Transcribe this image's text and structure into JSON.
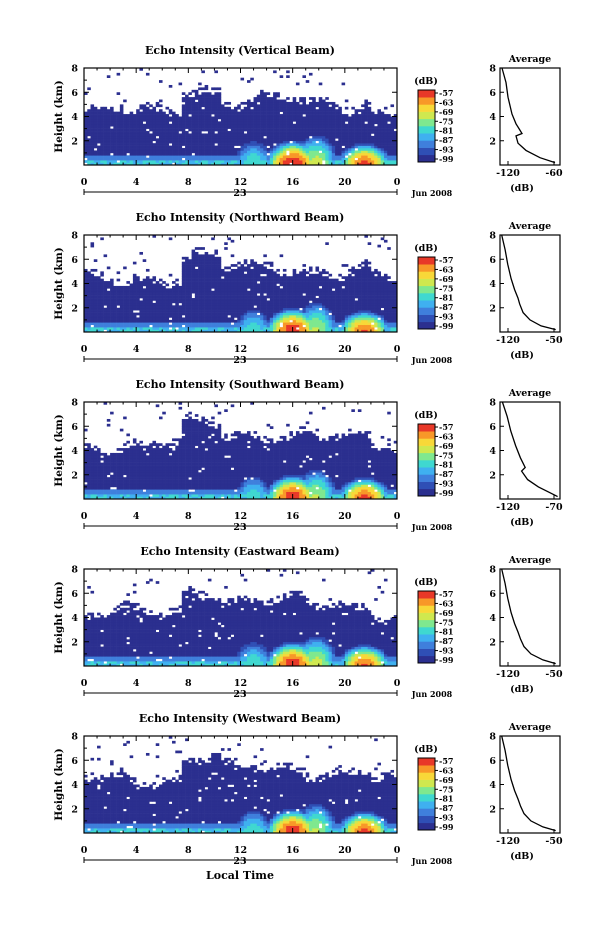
{
  "colormap": [
    "#2b2f8f",
    "#2f4fb5",
    "#3f7fdc",
    "#3fb0f0",
    "#3fd8d0",
    "#7fe88f",
    "#cfe84f",
    "#f8d838",
    "#f89828",
    "#e83828"
  ],
  "shared": {
    "x_ticks": [
      "0",
      "4",
      "8",
      "12",
      "16",
      "20",
      "0"
    ],
    "day_label": "23",
    "month_label": "Jun 2008",
    "xlabel": "Local Time",
    "ylabel": "Height (km)",
    "y_ticks": [
      "8",
      "6",
      "4",
      "2"
    ],
    "cb_unit": "(dB)",
    "cb_ticks": [
      "-57",
      "-63",
      "-69",
      "-75",
      "-81",
      "-87",
      "-93",
      "-99"
    ],
    "avg_title": "Average",
    "avg_xlabel": "(dB)"
  },
  "chart_data": [
    {
      "type": "heatmap",
      "title": "Echo Intensity (Vertical Beam)",
      "xlim": [
        0,
        24
      ],
      "ylim": [
        0,
        8
      ],
      "colorbar_range": [
        -99,
        -57
      ],
      "top_height_km": 4.2,
      "peaks": [
        {
          "x": 16,
          "y": 0.5,
          "v": -57
        },
        {
          "x": 21.5,
          "y": 0.4,
          "v": -60
        },
        {
          "x": 17.8,
          "y": 1.2,
          "v": -72
        },
        {
          "x": 13,
          "y": 1.0,
          "v": -78
        }
      ],
      "average_profile": {
        "xlim": [
          -120,
          -60
        ],
        "x_ticks": [
          "-120",
          "-60"
        ],
        "points": [
          [
            -118,
            8
          ],
          [
            -114,
            6.8
          ],
          [
            -112,
            5.6
          ],
          [
            -108,
            4.2
          ],
          [
            -104,
            3.4
          ],
          [
            -101,
            3.0
          ],
          [
            -98,
            2.6
          ],
          [
            -104,
            2.4
          ],
          [
            -102,
            1.8
          ],
          [
            -94,
            1.2
          ],
          [
            -80,
            0.6
          ],
          [
            -65,
            0.2
          ]
        ]
      }
    },
    {
      "type": "heatmap",
      "title": "Echo Intensity (Northward Beam)",
      "xlim": [
        0,
        24
      ],
      "ylim": [
        0,
        8
      ],
      "colorbar_range": [
        -99,
        -57
      ],
      "top_height_km": 4.2,
      "peaks": [
        {
          "x": 16,
          "y": 0.5,
          "v": -58
        },
        {
          "x": 21.5,
          "y": 0.4,
          "v": -61
        },
        {
          "x": 17.8,
          "y": 1.2,
          "v": -73
        },
        {
          "x": 13,
          "y": 1.0,
          "v": -79
        }
      ],
      "average_profile": {
        "xlim": [
          -120,
          -50
        ],
        "x_ticks": [
          "-120",
          "-50"
        ],
        "points": [
          [
            -118,
            8
          ],
          [
            -114,
            6.8
          ],
          [
            -111,
            5.6
          ],
          [
            -107,
            4.4
          ],
          [
            -103,
            3.5
          ],
          [
            -99,
            2.8
          ],
          [
            -97,
            2.3
          ],
          [
            -93,
            1.6
          ],
          [
            -85,
            1.0
          ],
          [
            -72,
            0.5
          ],
          [
            -55,
            0.2
          ]
        ]
      }
    },
    {
      "type": "heatmap",
      "title": "Echo Intensity (Southward Beam)",
      "xlim": [
        0,
        24
      ],
      "ylim": [
        0,
        8
      ],
      "colorbar_range": [
        -99,
        -57
      ],
      "top_height_km": 4.2,
      "peaks": [
        {
          "x": 16,
          "y": 0.5,
          "v": -58
        },
        {
          "x": 21.5,
          "y": 0.4,
          "v": -60
        },
        {
          "x": 17.8,
          "y": 1.2,
          "v": -73
        },
        {
          "x": 13,
          "y": 1.0,
          "v": -79
        }
      ],
      "average_profile": {
        "xlim": [
          -120,
          -70
        ],
        "x_ticks": [
          "-120",
          "-70"
        ],
        "points": [
          [
            -118,
            8
          ],
          [
            -114,
            6.8
          ],
          [
            -111,
            5.6
          ],
          [
            -107,
            4.4
          ],
          [
            -103,
            3.4
          ],
          [
            -99,
            2.6
          ],
          [
            -102,
            2.3
          ],
          [
            -97,
            1.6
          ],
          [
            -88,
            1.0
          ],
          [
            -78,
            0.5
          ],
          [
            -72,
            0.2
          ]
        ]
      }
    },
    {
      "type": "heatmap",
      "title": "Echo Intensity (Eastward Beam)",
      "xlim": [
        0,
        24
      ],
      "ylim": [
        0,
        8
      ],
      "colorbar_range": [
        -99,
        -57
      ],
      "top_height_km": 4.2,
      "peaks": [
        {
          "x": 16,
          "y": 0.5,
          "v": -58
        },
        {
          "x": 21.5,
          "y": 0.4,
          "v": -61
        },
        {
          "x": 17.8,
          "y": 1.2,
          "v": -72
        },
        {
          "x": 13,
          "y": 1.0,
          "v": -78
        }
      ],
      "average_profile": {
        "xlim": [
          -120,
          -50
        ],
        "x_ticks": [
          "-120",
          "-50"
        ],
        "points": [
          [
            -118,
            8
          ],
          [
            -114,
            6.8
          ],
          [
            -111,
            5.6
          ],
          [
            -107,
            4.4
          ],
          [
            -103,
            3.5
          ],
          [
            -99,
            2.8
          ],
          [
            -96,
            2.2
          ],
          [
            -92,
            1.6
          ],
          [
            -84,
            1.0
          ],
          [
            -70,
            0.5
          ],
          [
            -55,
            0.2
          ]
        ]
      }
    },
    {
      "type": "heatmap",
      "title": "Echo Intensity (Westward Beam)",
      "xlim": [
        0,
        24
      ],
      "ylim": [
        0,
        8
      ],
      "colorbar_range": [
        -99,
        -57
      ],
      "top_height_km": 4.2,
      "peaks": [
        {
          "x": 16,
          "y": 0.5,
          "v": -58
        },
        {
          "x": 21.5,
          "y": 0.4,
          "v": -60
        },
        {
          "x": 17.8,
          "y": 1.2,
          "v": -73
        },
        {
          "x": 13,
          "y": 1.0,
          "v": -79
        }
      ],
      "average_profile": {
        "xlim": [
          -120,
          -50
        ],
        "x_ticks": [
          "-120",
          "-50"
        ],
        "points": [
          [
            -118,
            8
          ],
          [
            -114,
            6.8
          ],
          [
            -111,
            5.6
          ],
          [
            -107,
            4.4
          ],
          [
            -103,
            3.5
          ],
          [
            -99,
            2.8
          ],
          [
            -96,
            2.2
          ],
          [
            -92,
            1.6
          ],
          [
            -84,
            1.0
          ],
          [
            -70,
            0.5
          ],
          [
            -55,
            0.2
          ]
        ]
      }
    }
  ]
}
